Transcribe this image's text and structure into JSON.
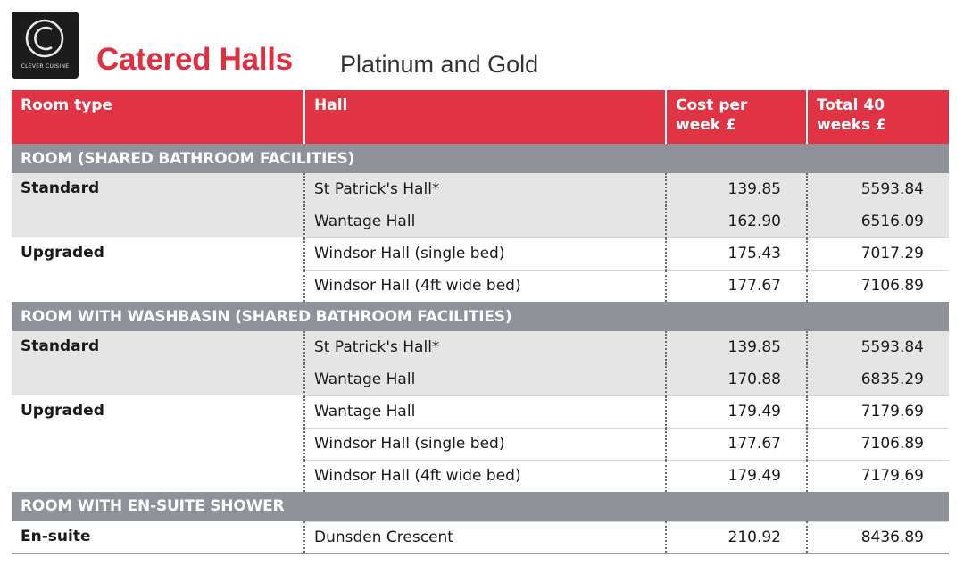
{
  "header": {
    "logo_text": "CLEVER CUISINE",
    "title": "Catered Halls",
    "subtitle": "Platinum and Gold"
  },
  "columns": {
    "room_type": "Room type",
    "hall": "Hall",
    "cost_per_week": "Cost per week £",
    "total_40_weeks": "Total 40 weeks £"
  },
  "sections": [
    {
      "heading": "ROOM (SHARED BATHROOM FACILITIES)",
      "groups": [
        {
          "room_type": "Standard",
          "rows": [
            {
              "hall": "St Patrick's Hall*",
              "cost": "139.85",
              "total": "5593.84"
            },
            {
              "hall": "Wantage Hall",
              "cost": "162.90",
              "total": "6516.09"
            }
          ]
        },
        {
          "room_type": "Upgraded",
          "rows": [
            {
              "hall": "Windsor Hall (single bed)",
              "cost": "175.43",
              "total": "7017.29"
            },
            {
              "hall": "Windsor Hall (4ft wide bed)",
              "cost": "177.67",
              "total": "7106.89"
            }
          ]
        }
      ]
    },
    {
      "heading": "ROOM WITH WASHBASIN (SHARED BATHROOM FACILITIES)",
      "groups": [
        {
          "room_type": "Standard",
          "rows": [
            {
              "hall": "St Patrick's Hall*",
              "cost": "139.85",
              "total": "5593.84"
            },
            {
              "hall": "Wantage Hall",
              "cost": "170.88",
              "total": "6835.29"
            }
          ]
        },
        {
          "room_type": "Upgraded",
          "rows": [
            {
              "hall": "Wantage Hall",
              "cost": "179.49",
              "total": "7179.69"
            },
            {
              "hall": "Windsor Hall (single bed)",
              "cost": "177.67",
              "total": "7106.89"
            },
            {
              "hall": "Windsor Hall (4ft wide bed)",
              "cost": "179.49",
              "total": "7179.69"
            }
          ]
        }
      ]
    },
    {
      "heading": "ROOM WITH EN-SUITE SHOWER",
      "groups": [
        {
          "room_type": "En-suite",
          "rows": [
            {
              "hall": "Dunsden Crescent",
              "cost": "210.92",
              "total": "8436.89"
            }
          ]
        }
      ]
    }
  ],
  "colors": {
    "header_red": "#e03444",
    "title_red": "#e03040",
    "section_grey": "#8f9399",
    "stripe_grey": "#e5e5e5"
  }
}
